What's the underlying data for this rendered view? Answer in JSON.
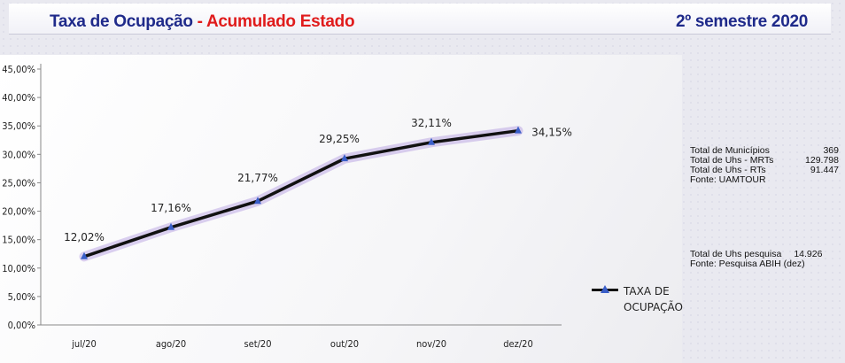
{
  "header": {
    "title_main": "Taxa de Ocupação",
    "title_sep": " - ",
    "title_accent": "Acumulado Estado",
    "semester": "2º semestre 2020"
  },
  "colors": {
    "title_blue": "#1f2a8a",
    "title_red": "#e01b1b",
    "line": "#111111",
    "marker": "#3a5ec8",
    "glow": "#9a7ad8"
  },
  "chart_data": {
    "type": "line",
    "categories": [
      "jul/20",
      "ago/20",
      "set/20",
      "out/20",
      "nov/20",
      "dez/20"
    ],
    "series": [
      {
        "name": "TAXA DE OCUPAÇÃO",
        "values": [
          12.02,
          17.16,
          21.77,
          29.25,
          32.11,
          34.15
        ],
        "labels": [
          "12,02%",
          "17,16%",
          "21,77%",
          "29,25%",
          "32,11%",
          "34,15%"
        ]
      }
    ],
    "ylim": [
      0,
      45
    ],
    "yticks": [
      "0,00%",
      "5,00%",
      "10,00%",
      "15,00%",
      "20,00%",
      "25,00%",
      "30,00%",
      "35,00%",
      "40,00%",
      "45,00%"
    ],
    "legend_position": "right",
    "grid": false
  },
  "info_panel": {
    "rows": [
      {
        "label": "Total de Municípios",
        "value": "369"
      },
      {
        "label": "Total de Uhs - MRTs",
        "value": "129.798"
      },
      {
        "label": "Total de Uhs - RTs",
        "value": "91.447"
      }
    ],
    "source": "Fonte: UAMTOUR",
    "pesquisa_label": "Total de Uhs pesquisa",
    "pesquisa_value": "14.926",
    "pesquisa_source": "Fonte: Pesquisa ABIH (dez)"
  }
}
